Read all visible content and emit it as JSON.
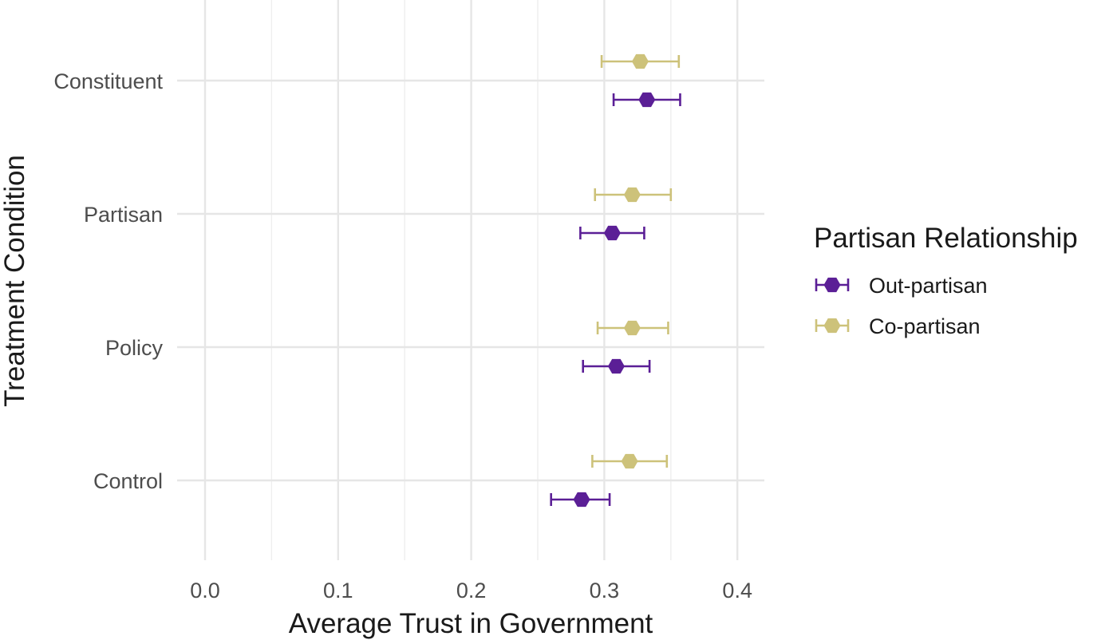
{
  "chart_data": {
    "type": "scatter",
    "subtype": "point-with-horizontal-error-bars",
    "title": "",
    "xlabel": "Average Trust in Government",
    "ylabel": "Treatment Condition",
    "xlim": [
      -0.01,
      0.42
    ],
    "x_ticks": [
      0.0,
      0.1,
      0.2,
      0.3,
      0.4
    ],
    "x_tick_labels": [
      "0.0",
      "0.1",
      "0.2",
      "0.3",
      "0.4"
    ],
    "categories": [
      "Constituent",
      "Partisan",
      "Policy",
      "Control"
    ],
    "grid": true,
    "legend": {
      "title": "Partisan Relationship",
      "position": "right"
    },
    "series": [
      {
        "name": "Out-partisan",
        "color": "#5b1f96",
        "points": [
          {
            "category": "Constituent",
            "value": 0.332,
            "low": 0.307,
            "high": 0.357
          },
          {
            "category": "Partisan",
            "value": 0.306,
            "low": 0.282,
            "high": 0.33
          },
          {
            "category": "Policy",
            "value": 0.309,
            "low": 0.284,
            "high": 0.334
          },
          {
            "category": "Control",
            "value": 0.283,
            "low": 0.26,
            "high": 0.304
          }
        ]
      },
      {
        "name": "Co-partisan",
        "color": "#cdc27a",
        "points": [
          {
            "category": "Constituent",
            "value": 0.327,
            "low": 0.298,
            "high": 0.356
          },
          {
            "category": "Partisan",
            "value": 0.321,
            "low": 0.293,
            "high": 0.35
          },
          {
            "category": "Policy",
            "value": 0.321,
            "low": 0.295,
            "high": 0.348
          },
          {
            "category": "Control",
            "value": 0.319,
            "low": 0.291,
            "high": 0.347
          }
        ]
      }
    ]
  }
}
